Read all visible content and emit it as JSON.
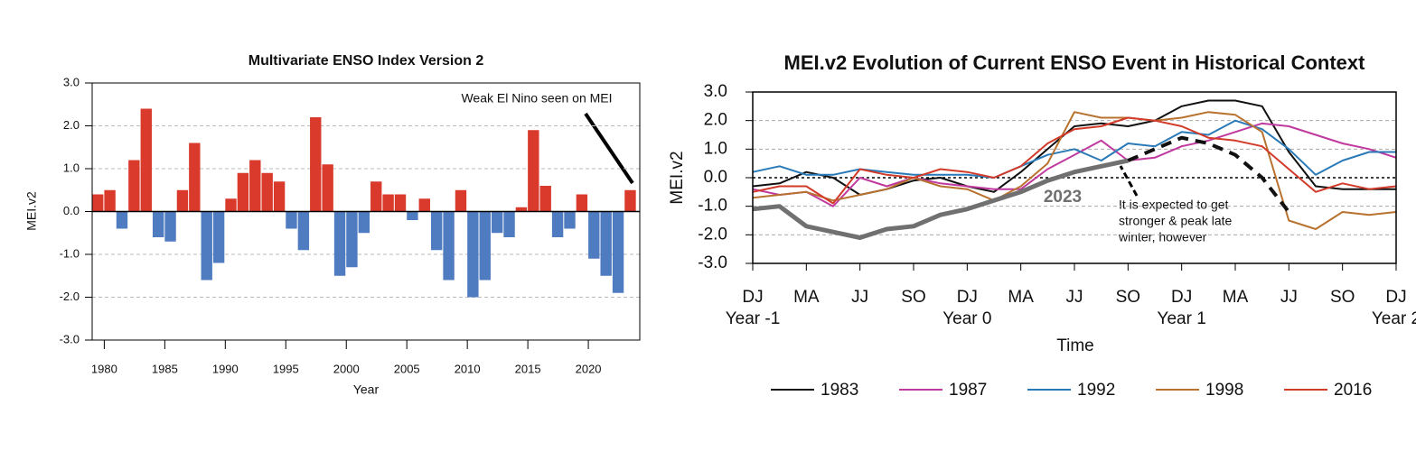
{
  "chart_data": [
    {
      "type": "bar",
      "title": "Multivariate ENSO Index Version 2",
      "xlabel": "Year",
      "ylabel": "MEI.v2",
      "annotation": "Weak El Nino seen on MEI",
      "x": [
        1979,
        1980,
        1981,
        1982,
        1983,
        1984,
        1985,
        1986,
        1987,
        1988,
        1989,
        1990,
        1991,
        1992,
        1993,
        1994,
        1995,
        1996,
        1997,
        1998,
        1999,
        2000,
        2001,
        2002,
        2003,
        2004,
        2005,
        2006,
        2007,
        2008,
        2009,
        2010,
        2011,
        2012,
        2013,
        2014,
        2015,
        2016,
        2017,
        2018,
        2019,
        2020,
        2021,
        2022,
        2023
      ],
      "values": [
        0.4,
        0.5,
        -0.4,
        1.2,
        2.4,
        -0.6,
        -0.7,
        0.5,
        1.6,
        -1.6,
        -1.2,
        0.3,
        0.9,
        1.2,
        0.9,
        0.7,
        -0.4,
        -0.9,
        2.2,
        1.1,
        -1.5,
        -1.3,
        -0.5,
        0.7,
        0.4,
        0.4,
        -0.2,
        0.3,
        -0.9,
        -1.6,
        0.5,
        -2.0,
        -1.6,
        -0.5,
        -0.6,
        0.1,
        1.9,
        0.6,
        -0.6,
        -0.4,
        0.4,
        -1.1,
        -1.5,
        -1.9,
        0.5
      ],
      "positive_color": "#d93a2b",
      "negative_color": "#4f7cc0",
      "xlim": [
        1979,
        2024.25
      ],
      "xticks": [
        1980,
        1985,
        1990,
        1995,
        2000,
        2005,
        2010,
        2015,
        2020
      ],
      "ylim": [
        -3,
        3
      ],
      "yticks": [
        {
          "value": 3,
          "label": "3.0"
        },
        {
          "value": 2,
          "label": "2.0"
        },
        {
          "value": 1,
          "label": "1.0"
        },
        {
          "value": 0,
          "label": "0.0"
        },
        {
          "value": -1,
          "label": "-1.0"
        },
        {
          "value": -2,
          "label": "-2.0"
        },
        {
          "value": -3,
          "label": "-3.0"
        }
      ],
      "grid": true
    },
    {
      "type": "line",
      "title": "MEI.v2 Evolution of Current ENSO Event in Historical Context",
      "xlabel": "Time",
      "ylabel": "MEI.v2",
      "categories": [
        "DJ",
        null,
        "MA",
        null,
        "JJ",
        null,
        "SO",
        null,
        "DJ",
        null,
        "MA",
        null,
        "JJ",
        null,
        "SO",
        null,
        "DJ",
        null,
        "MA",
        null,
        "JJ",
        null,
        "SO",
        null,
        "DJ"
      ],
      "year_labels": [
        "Year -1",
        "Year 0",
        "Year 1",
        "Year 2"
      ],
      "series": [
        {
          "name": "1983",
          "color": "#111111",
          "values": [
            -0.3,
            -0.2,
            0.2,
            0.0,
            -0.6,
            -0.4,
            -0.1,
            0.0,
            -0.3,
            -0.5,
            0.2,
            1.0,
            1.8,
            1.9,
            1.8,
            2.0,
            2.5,
            2.7,
            2.7,
            2.5,
            0.9,
            -0.3,
            -0.4,
            -0.4,
            -0.4
          ]
        },
        {
          "name": "1987",
          "color": "#c0399e",
          "values": [
            -0.4,
            -0.6,
            -0.5,
            -1.0,
            0.0,
            -0.3,
            0.0,
            -0.2,
            -0.3,
            -0.4,
            -0.4,
            0.3,
            0.8,
            1.3,
            0.6,
            0.7,
            1.1,
            1.3,
            1.6,
            1.9,
            1.8,
            1.5,
            1.2,
            1.0,
            0.7
          ]
        },
        {
          "name": "1992",
          "color": "#2a7ab8",
          "values": [
            0.2,
            0.4,
            0.1,
            0.1,
            0.3,
            0.2,
            0.1,
            0.1,
            0.1,
            0.0,
            0.4,
            0.8,
            1.0,
            0.6,
            1.2,
            1.1,
            1.6,
            1.5,
            2.0,
            1.7,
            1.0,
            0.1,
            0.6,
            0.9,
            0.9
          ]
        },
        {
          "name": "1998",
          "color": "#b8722f",
          "values": [
            -0.7,
            -0.6,
            -0.5,
            -0.8,
            -0.6,
            -0.4,
            0.0,
            -0.3,
            -0.4,
            -0.8,
            -0.3,
            0.5,
            2.3,
            2.1,
            2.1,
            2.0,
            2.1,
            2.3,
            2.2,
            1.6,
            -1.5,
            -1.8,
            -1.2,
            -1.3,
            -1.2
          ]
        },
        {
          "name": "2016",
          "color": "#d23a2a",
          "values": [
            -0.5,
            -0.3,
            -0.3,
            -0.9,
            0.3,
            0.1,
            0.0,
            0.3,
            0.2,
            0.0,
            0.4,
            1.2,
            1.7,
            1.8,
            2.1,
            2.0,
            1.8,
            1.4,
            1.3,
            1.1,
            0.3,
            -0.5,
            -0.2,
            -0.4,
            -0.3
          ]
        }
      ],
      "current": {
        "label": "2023",
        "color": "#707070",
        "values": [
          -1.1,
          -1.0,
          -1.7,
          -1.9,
          -2.1,
          -1.8,
          -1.7,
          -1.3,
          -1.1,
          -0.8,
          -0.5,
          -0.1,
          0.2,
          0.4,
          0.6,
          null,
          null,
          null,
          null,
          null,
          null,
          null,
          null,
          null,
          null
        ]
      },
      "projection": {
        "color": "#111111",
        "values": [
          null,
          null,
          null,
          null,
          null,
          null,
          null,
          null,
          null,
          null,
          null,
          null,
          null,
          null,
          0.6,
          1.0,
          1.4,
          1.2,
          0.8,
          0.0,
          -1.2,
          null,
          null,
          null,
          null
        ]
      },
      "annotation": [
        "It is expected to get",
        "stronger & peak late",
        "winter, however"
      ],
      "ylim": [
        -3,
        3
      ],
      "yticks": [
        {
          "value": 3,
          "label": "3.0"
        },
        {
          "value": 2,
          "label": "2.0"
        },
        {
          "value": 1,
          "label": "1.0"
        },
        {
          "value": 0,
          "label": "0.0"
        },
        {
          "value": -1,
          "label": "-1.0"
        },
        {
          "value": -2,
          "label": "-2.0"
        },
        {
          "value": -3,
          "label": "-3.0"
        }
      ],
      "grid": true,
      "zero_line": true,
      "legend": "bottom"
    }
  ]
}
